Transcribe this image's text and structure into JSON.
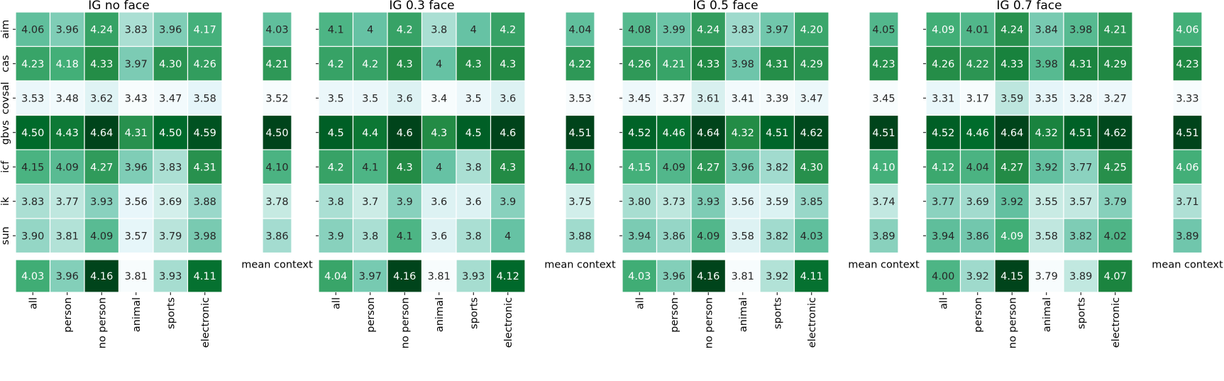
{
  "chart_data": {
    "type": "heatmap",
    "colormap": "BuGn",
    "row_labels": [
      "aim",
      "cas",
      "covsal",
      "gbvs",
      "icf",
      "ik",
      "sun"
    ],
    "col_labels": [
      "all",
      "person",
      "no person",
      "animal",
      "sports",
      "electronic"
    ],
    "mean_label": "mean context",
    "panels": [
      {
        "title": "IG no face",
        "values": [
          [
            "4.06",
            "3.96",
            "4.24",
            "3.83",
            "3.96",
            "4.17"
          ],
          [
            "4.23",
            "4.18",
            "4.33",
            "3.97",
            "4.30",
            "4.26"
          ],
          [
            "3.53",
            "3.48",
            "3.62",
            "3.43",
            "3.47",
            "3.58"
          ],
          [
            "4.50",
            "4.43",
            "4.64",
            "4.31",
            "4.50",
            "4.59"
          ],
          [
            "4.15",
            "4.09",
            "4.27",
            "3.96",
            "3.83",
            "4.31"
          ],
          [
            "3.83",
            "3.77",
            "3.93",
            "3.56",
            "3.69",
            "3.88"
          ],
          [
            "3.90",
            "3.81",
            "4.09",
            "3.57",
            "3.79",
            "3.98"
          ]
        ],
        "row_means": [
          "4.03",
          "4.21",
          "3.52",
          "4.50",
          "4.10",
          "3.78",
          "3.86"
        ],
        "col_means": [
          "4.03",
          "3.96",
          "4.16",
          "3.81",
          "3.93",
          "4.11"
        ]
      },
      {
        "title": "IG 0.3 face",
        "values": [
          [
            "4.1",
            "4",
            "4.2",
            "3.8",
            "4",
            "4.2"
          ],
          [
            "4.2",
            "4.2",
            "4.3",
            "4",
            "4.3",
            "4.3"
          ],
          [
            "3.5",
            "3.5",
            "3.6",
            "3.4",
            "3.5",
            "3.6"
          ],
          [
            "4.5",
            "4.4",
            "4.6",
            "4.3",
            "4.5",
            "4.6"
          ],
          [
            "4.2",
            "4.1",
            "4.3",
            "4",
            "3.8",
            "4.3"
          ],
          [
            "3.8",
            "3.7",
            "3.9",
            "3.6",
            "3.6",
            "3.9"
          ],
          [
            "3.9",
            "3.8",
            "4.1",
            "3.6",
            "3.8",
            "4"
          ]
        ],
        "row_means": [
          "4.04",
          "4.22",
          "3.53",
          "4.51",
          "4.10",
          "3.75",
          "3.88"
        ],
        "col_means": [
          "4.04",
          "3.97",
          "4.16",
          "3.81",
          "3.93",
          "4.12"
        ]
      },
      {
        "title": "IG 0.5 face",
        "values": [
          [
            "4.08",
            "3.99",
            "4.24",
            "3.83",
            "3.97",
            "4.20"
          ],
          [
            "4.26",
            "4.21",
            "4.33",
            "3.98",
            "4.31",
            "4.29"
          ],
          [
            "3.45",
            "3.37",
            "3.61",
            "3.41",
            "3.39",
            "3.47"
          ],
          [
            "4.52",
            "4.46",
            "4.64",
            "4.32",
            "4.51",
            "4.62"
          ],
          [
            "4.15",
            "4.09",
            "4.27",
            "3.96",
            "3.82",
            "4.30"
          ],
          [
            "3.80",
            "3.73",
            "3.93",
            "3.56",
            "3.59",
            "3.85"
          ],
          [
            "3.94",
            "3.86",
            "4.09",
            "3.58",
            "3.82",
            "4.03"
          ]
        ],
        "row_means": [
          "4.05",
          "4.23",
          "3.45",
          "4.51",
          "4.10",
          "3.74",
          "3.89"
        ],
        "col_means": [
          "4.03",
          "3.96",
          "4.16",
          "3.81",
          "3.92",
          "4.11"
        ]
      },
      {
        "title": "IG 0.7 face",
        "values": [
          [
            "4.09",
            "4.01",
            "4.24",
            "3.84",
            "3.98",
            "4.21"
          ],
          [
            "4.26",
            "4.22",
            "4.33",
            "3.98",
            "4.31",
            "4.29"
          ],
          [
            "3.31",
            "3.17",
            "3.59",
            "3.35",
            "3.28",
            "3.27"
          ],
          [
            "4.52",
            "4.46",
            "4.64",
            "4.32",
            "4.51",
            "4.62"
          ],
          [
            "4.12",
            "4.04",
            "4.27",
            "3.92",
            "3.77",
            "4.25"
          ],
          [
            "3.77",
            "3.69",
            "3.92",
            "3.55",
            "3.57",
            "3.79"
          ],
          [
            "3.94",
            "3.86",
            "4.09",
            "3.58",
            "3.82",
            "4.02"
          ]
        ],
        "row_means": [
          "4.06",
          "4.23",
          "3.33",
          "4.51",
          "4.06",
          "3.71",
          "3.89"
        ],
        "col_means": [
          "4.00",
          "3.92",
          "4.15",
          "3.79",
          "3.89",
          "4.07"
        ]
      }
    ]
  }
}
